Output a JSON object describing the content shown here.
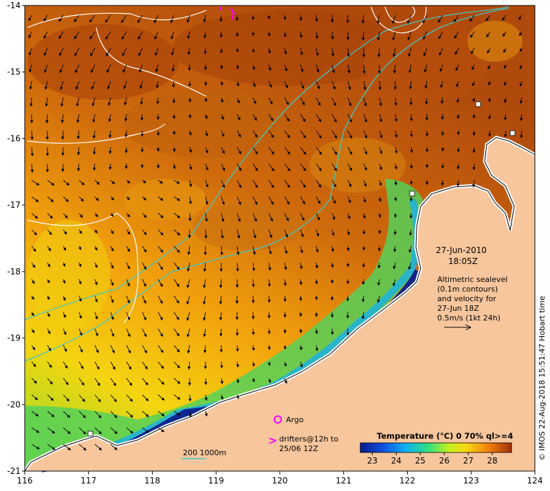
{
  "map": {
    "lon_range": [
      116,
      124
    ],
    "lat_range": [
      -21,
      -14
    ],
    "lon_ticks": [
      "116",
      "117",
      "118",
      "119",
      "120",
      "121",
      "122",
      "123",
      "124"
    ],
    "lat_ticks": [
      "-14",
      "-15",
      "-16",
      "-17",
      "-18",
      "-19",
      "-20",
      "-21"
    ],
    "colors": {
      "land": "#f8c69c",
      "warm": "#b94a0c",
      "cool": "#0a2a9a",
      "isobath": "#40c8c8",
      "contour": "#ffffff"
    }
  },
  "annotation": {
    "date": "27-Jun-2010",
    "time": "18:05Z",
    "note_lines": [
      "Altimetric sealevel",
      "(0.1m contours)",
      "and velocity for",
      "27-Jun 18Z",
      "0.5m/s (1kt 24h)"
    ]
  },
  "legend": {
    "argo_label": "Argo",
    "drifters_line1": "drifters@12h to",
    "drifters_line2": "25/06 12Z",
    "isobath_label": "200  1000m",
    "argo_color": "#ff00ff"
  },
  "colorbar": {
    "title": "Temperature (°C) 0 70% ql>=4",
    "ticks": [
      "23",
      "24",
      "25",
      "26",
      "27",
      "28"
    ],
    "range": [
      22.5,
      28.8
    ]
  },
  "credit": "© IMOS 22-Aug-2018 15:51:47 Hobart time"
}
